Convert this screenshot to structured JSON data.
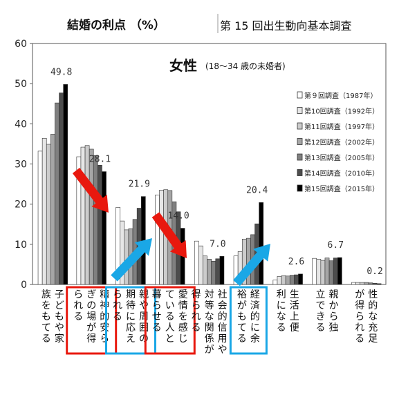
{
  "header": {
    "title": "結婚の利点 （%）",
    "source": "第 15 回出生動向基本調査"
  },
  "chart_data": {
    "type": "bar",
    "title": "女性",
    "subtitle": "(18～34 歳の未婚者)",
    "ylim": [
      0,
      60
    ],
    "yticks": [
      "0",
      "10",
      "20",
      "30",
      "40",
      "50",
      "60"
    ],
    "grid": false,
    "legend_position": "right",
    "categories": [
      "子どもや家族をもてる",
      "精神的安らぎの場が得られる",
      "親や周囲の期待に応えられる",
      "愛情を感じている人と暮らせる",
      "社会的信用や対等な関係が得られる",
      "経済的に余裕がもてる",
      "生活上便利になる",
      "親から独立できる",
      "性的な充足が得られる"
    ],
    "series": [
      {
        "name": "第９回調査（1987年）",
        "color": "#ffffff",
        "values": [
          33.2,
          31.8,
          19.2,
          22.3,
          10.8,
          7.1,
          1.1,
          6.5,
          0.5
        ]
      },
      {
        "name": "第10回調査（1992年）",
        "color": "#e6e6e6",
        "values": [
          36.4,
          34.2,
          15.8,
          23.5,
          9.6,
          8.2,
          2.0,
          6.3,
          0.5
        ]
      },
      {
        "name": "第11回調査（1997年）",
        "color": "#cccccc",
        "values": [
          34.9,
          34.6,
          13.6,
          23.6,
          7.1,
          11.3,
          2.2,
          6.0,
          0.5
        ]
      },
      {
        "name": "第12回調査（2002年）",
        "color": "#a6a6a6",
        "values": [
          37.4,
          33.7,
          13.9,
          23.4,
          6.3,
          11.5,
          2.1,
          6.6,
          0.5
        ]
      },
      {
        "name": "第13回調査（2005年）",
        "color": "#808080",
        "values": [
          45.2,
          32.1,
          16.2,
          20.6,
          5.8,
          12.4,
          2.3,
          5.9,
          0.4
        ]
      },
      {
        "name": "第14回調査（2010年）",
        "color": "#4d4d4d",
        "values": [
          47.7,
          29.7,
          19.0,
          18.1,
          6.4,
          15.1,
          2.4,
          6.6,
          0.3
        ]
      },
      {
        "name": "第15回調査（2015年）",
        "color": "#000000",
        "values": [
          49.8,
          28.1,
          21.9,
          14.0,
          7.0,
          20.4,
          2.6,
          6.7,
          0.2
        ]
      }
    ],
    "data_labels": [
      "49.8",
      "28.1",
      "21.9",
      "14.0",
      "7.0",
      "20.4",
      "2.6",
      "6.7",
      "0.2"
    ],
    "highlight": {
      "decrease_color": "#e8180e",
      "increase_color": "#1aa7e6",
      "decrease_categories": [
        "精神的安らぎの場が得られる",
        "愛情を感じている人と暮らせる"
      ],
      "increase_categories": [
        "親や周囲の期待に応えられる",
        "経済的に余裕がもてる"
      ]
    }
  }
}
